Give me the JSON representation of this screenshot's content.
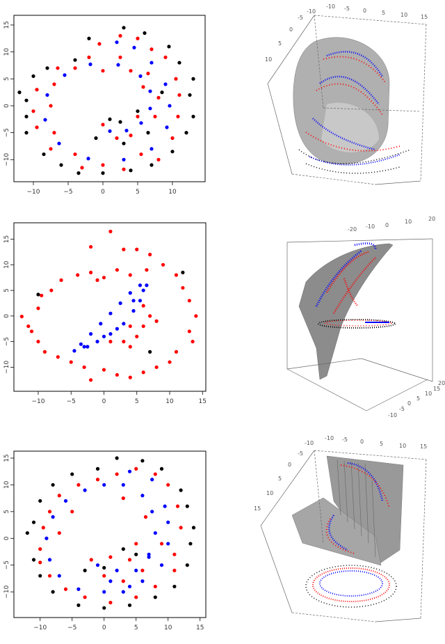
{
  "chart_data": [
    {
      "type": "scatter",
      "xlim": [
        -12.8,
        14.7
      ],
      "ylim": [
        -14.1,
        16.8
      ],
      "xticks": [
        -10,
        -5,
        0,
        5,
        10
      ],
      "yticks": [
        -10,
        -5,
        0,
        5,
        10,
        15
      ],
      "grid": false,
      "series": [
        {
          "color": "#000000",
          "points": [
            [
              -1,
              -6
            ],
            [
              3,
              -7
            ],
            [
              1,
              -2.5
            ],
            [
              5,
              -1
            ],
            [
              -12,
              2.5
            ],
            [
              -11,
              -2
            ],
            [
              -11,
              -5
            ],
            [
              -8.5,
              -9
            ],
            [
              -6,
              -11
            ],
            [
              -3.5,
              -12.5
            ],
            [
              0,
              -12.5
            ],
            [
              4,
              -12
            ],
            [
              7,
              -11
            ],
            [
              10,
              -8.5
            ],
            [
              12,
              -5
            ],
            [
              13,
              -2
            ],
            [
              12.5,
              2
            ],
            [
              13,
              5
            ],
            [
              11,
              8
            ],
            [
              9.5,
              11
            ],
            [
              6,
              13.5
            ],
            [
              3,
              14.5
            ],
            [
              -2,
              12.5
            ],
            [
              -4,
              8.5
            ],
            [
              -8,
              7
            ],
            [
              -10,
              5.5
            ],
            [
              -11,
              1
            ],
            [
              8.5,
              2.5
            ],
            [
              6.5,
              -5
            ],
            [
              2.5,
              -3
            ]
          ]
        },
        {
          "color": "#ff0000",
          "points": [
            [
              0,
              -3.5
            ],
            [
              2,
              -6
            ],
            [
              4,
              -5.5
            ],
            [
              5,
              -2
            ],
            [
              7.5,
              -2
            ],
            [
              8,
              1.5
            ],
            [
              5.8,
              3.5
            ],
            [
              6.5,
              6
            ],
            [
              4,
              6.5
            ],
            [
              2.5,
              9
            ],
            [
              0,
              6.5
            ],
            [
              -2,
              9
            ],
            [
              -4,
              7
            ],
            [
              -6.5,
              7
            ],
            [
              -7,
              4
            ],
            [
              -9.5,
              3
            ],
            [
              -7.5,
              0
            ],
            [
              -10,
              -1
            ],
            [
              -9.5,
              -4
            ],
            [
              -7,
              -5
            ],
            [
              -7.5,
              -8
            ],
            [
              -4,
              -9
            ],
            [
              -3,
              -11.5
            ],
            [
              0,
              -11
            ],
            [
              3,
              -11.8
            ],
            [
              5.5,
              -9
            ],
            [
              8,
              -10
            ],
            [
              10,
              -6
            ],
            [
              10.8,
              -2
            ],
            [
              11,
              2
            ],
            [
              10.5,
              5
            ],
            [
              9,
              9
            ],
            [
              7,
              10.5
            ],
            [
              5,
              12.5
            ],
            [
              2.5,
              13
            ],
            [
              -0.5,
              11.5
            ]
          ]
        },
        {
          "color": "#0000ff",
          "points": [
            [
              1,
              -4.7
            ],
            [
              3.4,
              -4.6
            ],
            [
              5.5,
              -3.2
            ],
            [
              6.8,
              -0.5
            ],
            [
              6.8,
              2.7
            ],
            [
              5.4,
              5.5
            ],
            [
              2.2,
              7.6
            ],
            [
              -1.8,
              7.7
            ],
            [
              -5.5,
              5.7
            ],
            [
              -8,
              2
            ],
            [
              -8.3,
              -2.6
            ],
            [
              -6.3,
              -7
            ],
            [
              -2.1,
              -9.8
            ],
            [
              3,
              -10
            ],
            [
              7,
              -8
            ],
            [
              9.2,
              -4
            ],
            [
              9.6,
              0
            ],
            [
              9,
              4
            ],
            [
              7,
              8
            ],
            [
              4.5,
              10.8
            ],
            [
              2,
              11.8
            ]
          ]
        }
      ]
    },
    {
      "type": "scatter",
      "xlim": [
        -13.7,
        15.5
      ],
      "ylim": [
        -14.7,
        18.2
      ],
      "xticks": [
        -10,
        -5,
        0,
        5,
        10,
        15
      ],
      "yticks": [
        -10,
        -5,
        0,
        5,
        10,
        15
      ],
      "grid": false,
      "series": [
        {
          "color": "#000000",
          "points": [
            [
              -10,
              4.2
            ],
            [
              7,
              -7
            ],
            [
              12,
              8.5
            ]
          ]
        },
        {
          "color": "#ff0000",
          "points": [
            [
              -12.5,
              -0.1
            ],
            [
              -11.5,
              -2
            ],
            [
              -10,
              1.5
            ],
            [
              -9.5,
              4
            ],
            [
              -8,
              5
            ],
            [
              -6.5,
              7
            ],
            [
              -4,
              8
            ],
            [
              -2,
              8.5
            ],
            [
              0,
              7.5
            ],
            [
              2,
              9
            ],
            [
              4,
              8
            ],
            [
              3,
              13
            ],
            [
              1,
              16.5
            ],
            [
              -2,
              13.5
            ],
            [
              5,
              13
            ],
            [
              7,
              12
            ],
            [
              9,
              10
            ],
            [
              11,
              8
            ],
            [
              12,
              5.5
            ],
            [
              13,
              3
            ],
            [
              14,
              0
            ],
            [
              13,
              -3
            ],
            [
              13.5,
              -5
            ],
            [
              11,
              -7
            ],
            [
              10,
              -9
            ],
            [
              8,
              -10
            ],
            [
              6,
              -11
            ],
            [
              4,
              -12
            ],
            [
              2,
              -11.5
            ],
            [
              0,
              -10.5
            ],
            [
              -2,
              -12.5
            ],
            [
              -3,
              -10
            ],
            [
              -5,
              -9
            ],
            [
              -7,
              -8
            ],
            [
              -9,
              -7
            ],
            [
              -10,
              -5
            ],
            [
              -11,
              -3
            ],
            [
              6,
              -2
            ],
            [
              7,
              0
            ],
            [
              5,
              -4
            ],
            [
              4,
              -6
            ],
            [
              3,
              -5
            ],
            [
              8,
              -1
            ],
            [
              6,
              2
            ],
            [
              4,
              -2
            ],
            [
              1,
              -5
            ],
            [
              -1,
              7
            ],
            [
              6.5,
              9
            ]
          ]
        },
        {
          "color": "#0000ff",
          "points": [
            [
              -4.5,
              -6.8
            ],
            [
              -3,
              -6
            ],
            [
              -1,
              -5
            ],
            [
              1,
              -3.5
            ],
            [
              3,
              -1.5
            ],
            [
              4.5,
              1
            ],
            [
              5.5,
              3
            ],
            [
              6.5,
              6
            ],
            [
              5.5,
              6
            ],
            [
              4,
              4.5
            ],
            [
              2.5,
              2.5
            ],
            [
              1,
              0.5
            ],
            [
              -0.5,
              -1.5
            ],
            [
              -2,
              -3.5
            ],
            [
              -3.5,
              -5.5
            ],
            [
              0,
              -4
            ],
            [
              2,
              -2.5
            ],
            [
              6,
              5
            ],
            [
              4.5,
              3
            ],
            [
              -2.5,
              -6
            ]
          ]
        }
      ]
    },
    {
      "type": "scatter",
      "xlim": [
        -14.1,
        15.9
      ],
      "ylim": [
        -14.8,
        16.3
      ],
      "xticks": [
        -10,
        -5,
        0,
        5,
        10,
        15
      ],
      "yticks": [
        -10,
        -5,
        0,
        5,
        10,
        15
      ],
      "grid": false,
      "series": [
        {
          "color": "#000000",
          "points": [
            [
              -12,
              1
            ],
            [
              -11,
              -4
            ],
            [
              -10,
              -7
            ],
            [
              -8,
              -10
            ],
            [
              -4,
              -12.5
            ],
            [
              0,
              -13
            ],
            [
              4,
              -12.5
            ],
            [
              8,
              -11
            ],
            [
              11,
              -9
            ],
            [
              13,
              -5
            ],
            [
              13.5,
              -1
            ],
            [
              14,
              2
            ],
            [
              13,
              6
            ],
            [
              12,
              9
            ],
            [
              9,
              13
            ],
            [
              6,
              14.5
            ],
            [
              2,
              15
            ],
            [
              -1,
              13
            ],
            [
              -5,
              12
            ],
            [
              -8,
              10
            ],
            [
              -10,
              7
            ],
            [
              -11,
              3
            ],
            [
              -3,
              -6
            ],
            [
              0,
              -5.5
            ],
            [
              5,
              -3
            ],
            [
              3,
              -2
            ]
          ]
        },
        {
          "color": "#ff0000",
          "points": [
            [
              -10,
              -2
            ],
            [
              -9.5,
              2
            ],
            [
              -8.5,
              5
            ],
            [
              -7,
              8
            ],
            [
              -4,
              10
            ],
            [
              -1,
              11
            ],
            [
              2,
              12
            ],
            [
              5,
              13
            ],
            [
              8,
              12
            ],
            [
              10,
              10
            ],
            [
              11.5,
              6
            ],
            [
              12,
              2
            ],
            [
              11,
              -3
            ],
            [
              11,
              -6
            ],
            [
              8,
              -9
            ],
            [
              5,
              -11
            ],
            [
              1,
              -12
            ],
            [
              -3,
              -11
            ],
            [
              -6,
              -9.5
            ],
            [
              -8.5,
              -7
            ],
            [
              -10,
              -4.5
            ],
            [
              -2,
              -4
            ],
            [
              1,
              -3.5
            ],
            [
              4,
              -4
            ],
            [
              6,
              -6
            ],
            [
              5,
              -1
            ],
            [
              9,
              -1
            ],
            [
              6.5,
              4
            ],
            [
              3,
              7.5
            ],
            [
              -5,
              5
            ],
            [
              -7,
              1
            ],
            [
              0,
              -7
            ],
            [
              3,
              -8
            ]
          ]
        },
        {
          "color": "#0000ff",
          "points": [
            [
              -1,
              -5
            ],
            [
              2,
              -6
            ],
            [
              5,
              -6
            ],
            [
              7,
              -3
            ],
            [
              8,
              1
            ],
            [
              7.5,
              5
            ],
            [
              6,
              8
            ],
            [
              3,
              10
            ],
            [
              0,
              10
            ],
            [
              -3,
              9
            ],
            [
              -6,
              7
            ],
            [
              -8,
              4
            ],
            [
              -9,
              0
            ],
            [
              -8.5,
              -4
            ],
            [
              -7,
              -7
            ],
            [
              -4,
              -9.5
            ],
            [
              0,
              -10
            ],
            [
              3,
              -10
            ],
            [
              6,
              -8
            ],
            [
              9,
              -5
            ],
            [
              10,
              -1
            ],
            [
              10,
              3
            ],
            [
              9.5,
              6
            ],
            [
              7.5,
              11
            ],
            [
              4,
              12.5
            ],
            [
              1,
              -8
            ],
            [
              4,
              -9
            ],
            [
              7,
              -3.5
            ]
          ]
        }
      ]
    }
  ],
  "panels3d": [
    {
      "type": "3d-surface-scatter",
      "top_ticks": [
        "-10",
        "-5",
        "0",
        "5",
        "10",
        "15"
      ],
      "side_ticks": [
        "-10",
        "-5",
        "0",
        "5",
        "10"
      ],
      "surface_color": "#a0a0a0"
    },
    {
      "type": "3d-surface-scatter",
      "top_ticks": [
        "-20",
        "-10",
        "0",
        "10",
        "20"
      ],
      "side_ticks": [
        "-10",
        "-5",
        "0",
        "5",
        "10",
        "15",
        "20"
      ],
      "surface_color": "#8c8c8c"
    },
    {
      "type": "3d-surface-scatter",
      "top_ticks": [
        "-10",
        "-5",
        "0",
        "5",
        "10",
        "15"
      ],
      "side_ticks": [
        "-10",
        "-5",
        "0",
        "5",
        "10",
        "15"
      ],
      "surface_color": "#999999"
    }
  ]
}
